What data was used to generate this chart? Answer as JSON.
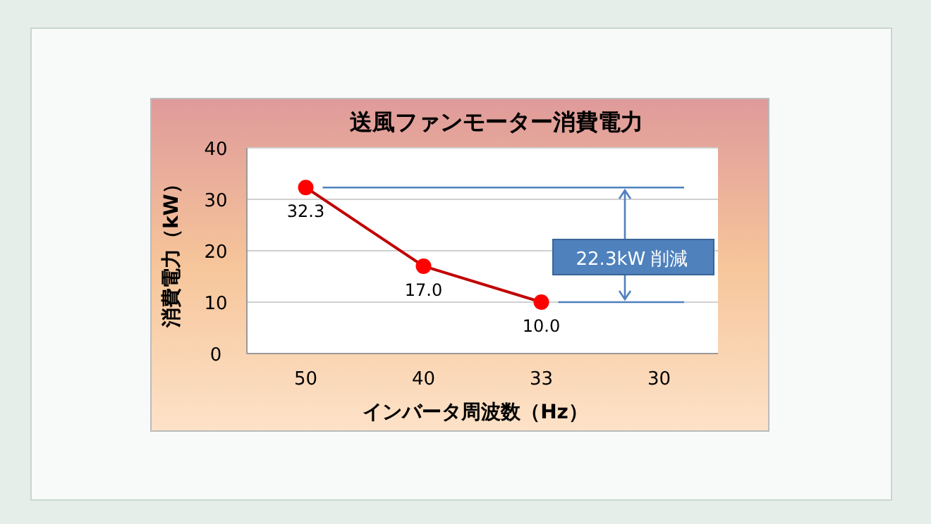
{
  "chart_data": {
    "type": "line",
    "title": "送風ファンモーター消費電力",
    "xlabel": "インバータ周波数（Hz）",
    "ylabel": "消費電力（kW）",
    "categories": [
      "50",
      "40",
      "33",
      "30"
    ],
    "series": [
      {
        "color": "#c00000",
        "values": [
          32.3,
          17.0,
          10.0,
          null
        ],
        "value_labels": [
          "32.3",
          "17.0",
          "10.0",
          null
        ]
      }
    ],
    "ylim": [
      0,
      40
    ],
    "yticks": [
      0,
      10,
      20,
      30,
      40
    ],
    "grid": "y",
    "marker": "circle",
    "line_style": "solid",
    "ref_lines": [
      {
        "axis": "y",
        "value": 32.3,
        "color": "#4f81bd"
      },
      {
        "axis": "y",
        "value": 10.0,
        "color": "#4f81bd"
      }
    ],
    "annotations": [
      "22.3kW 削減"
    ]
  }
}
